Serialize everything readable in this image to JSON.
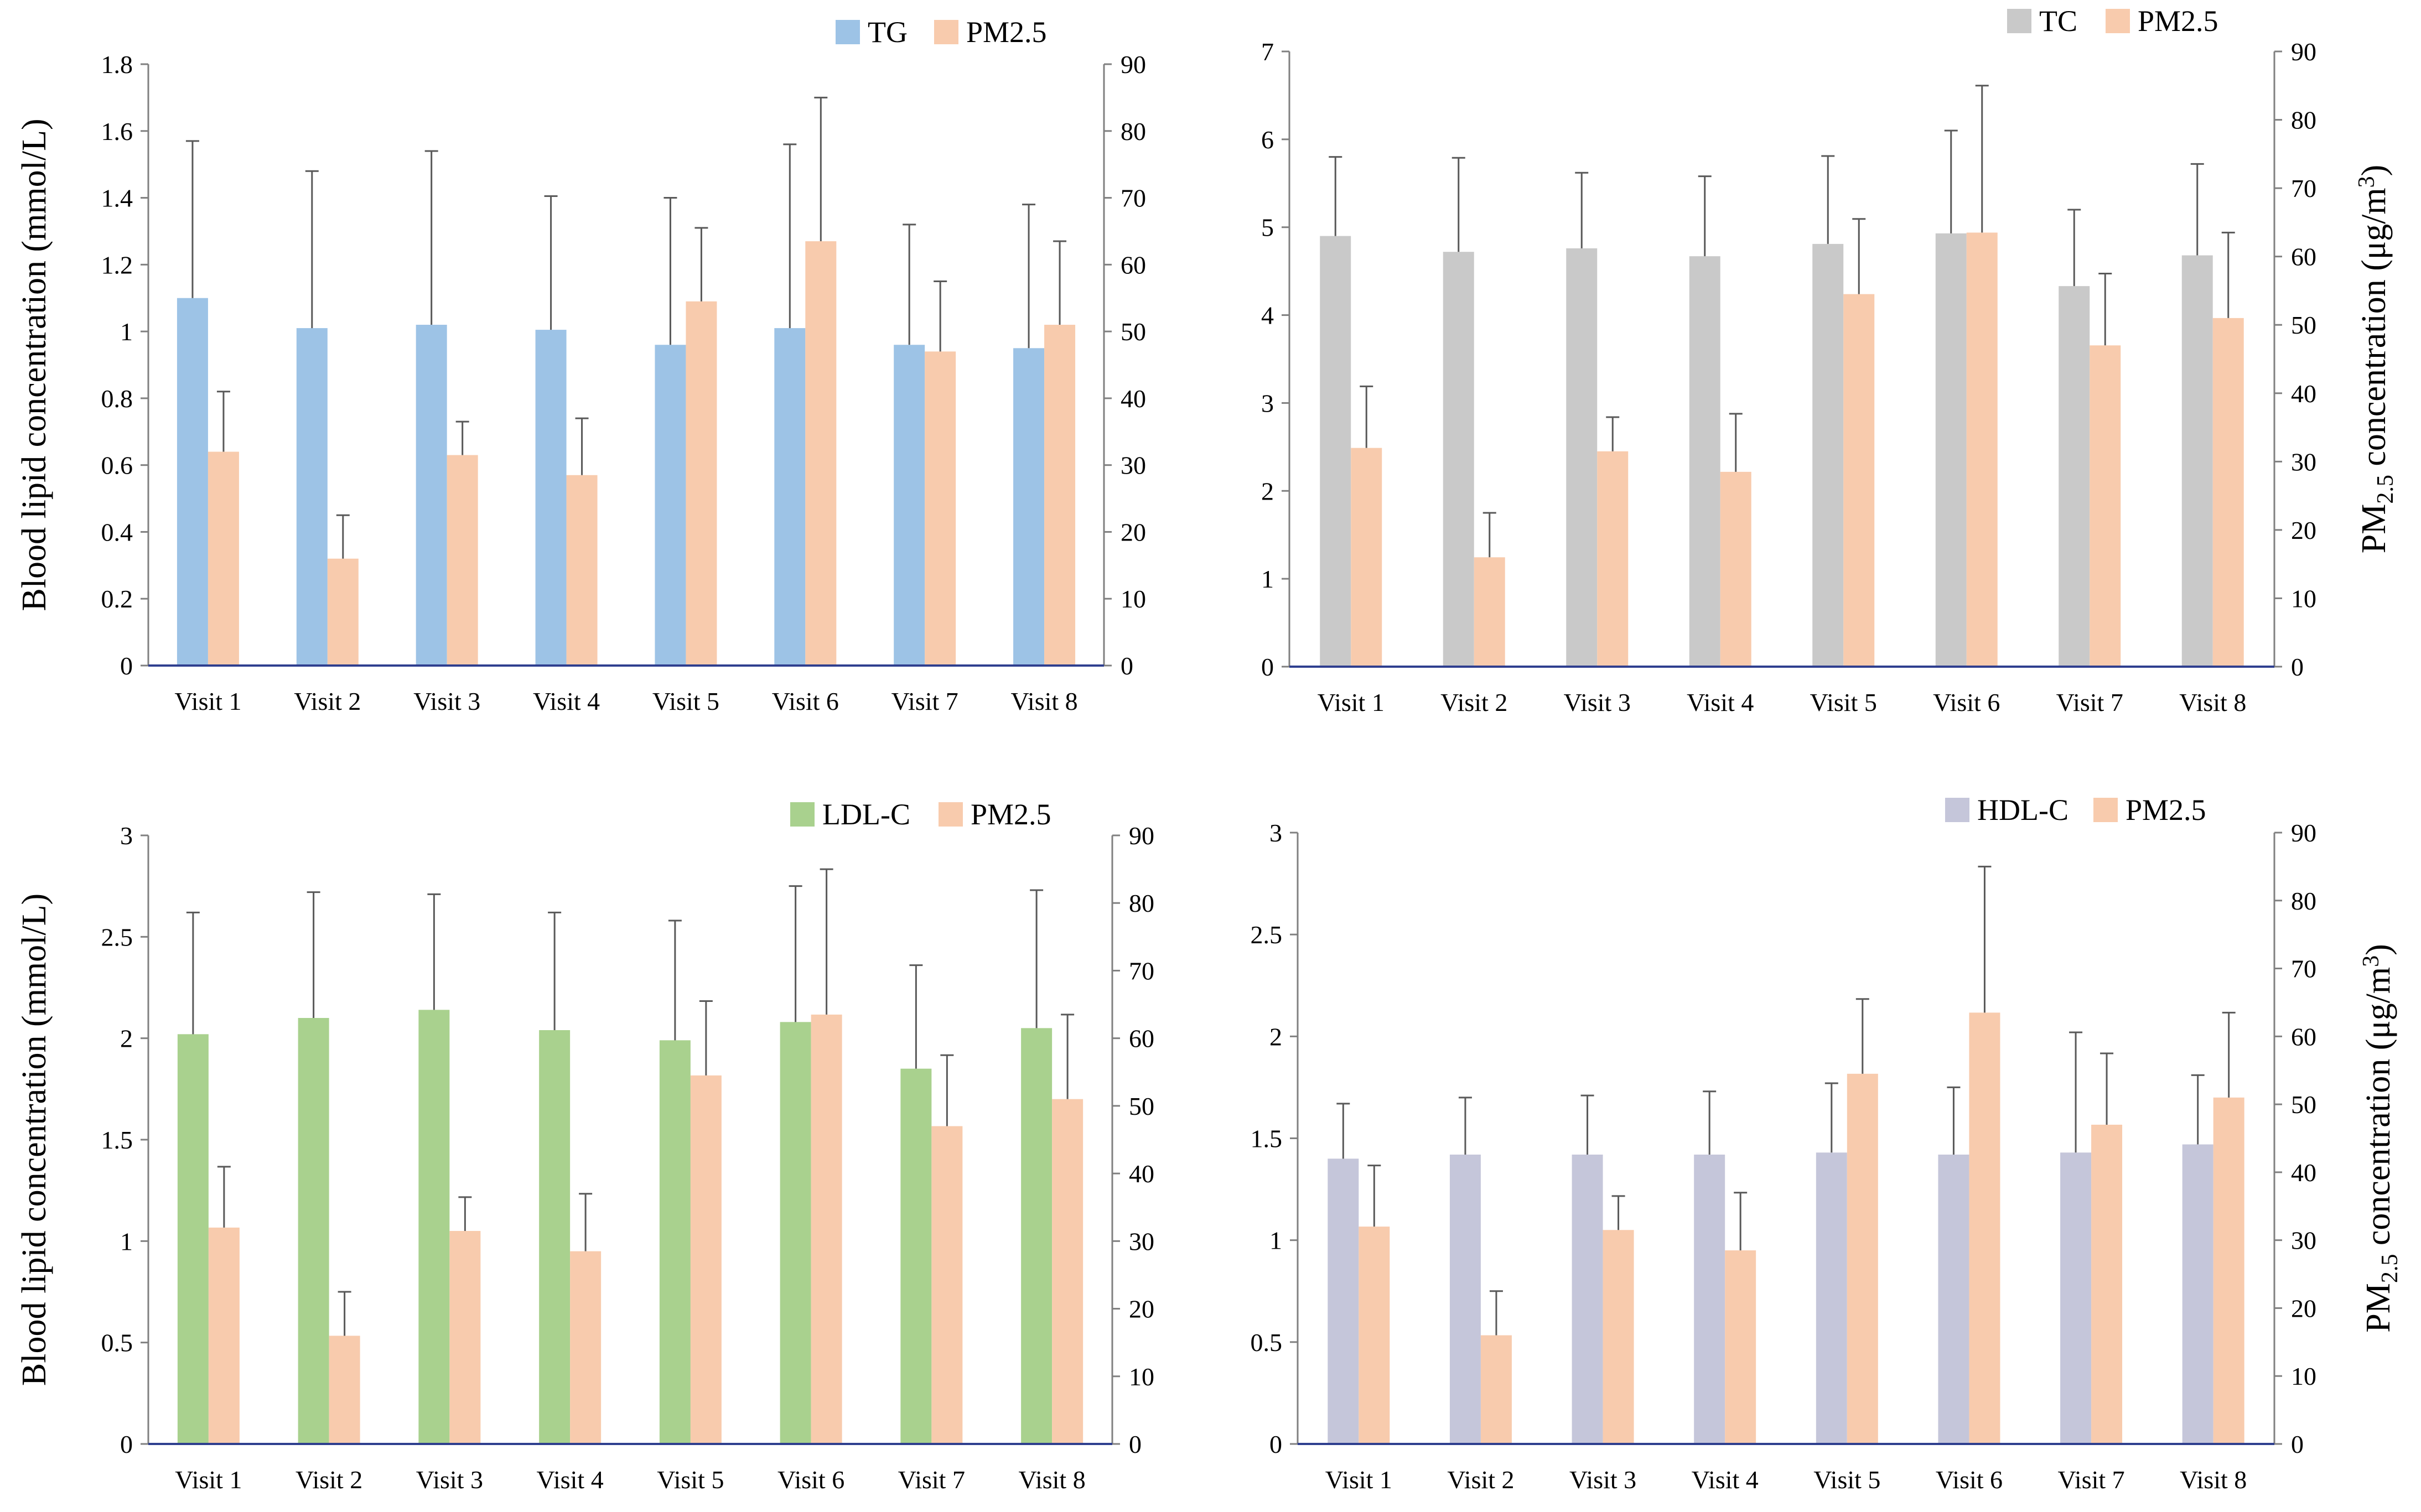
{
  "colors": {
    "TG": "#9dc3e6",
    "TC": "#c9c9c9",
    "LDL-C": "#a9d18e",
    "HDL-C": "#c5c6da",
    "PM2.5": "#f8cbad",
    "axis_primary": "#2f3f8f",
    "axis": "#808080",
    "error_bar": "#595959"
  },
  "chart_data": [
    {
      "type": "bar",
      "id": "tg",
      "categories": [
        "Visit 1",
        "Visit 2",
        "Visit 3",
        "Visit 4",
        "Visit 5",
        "Visit 6",
        "Visit 7",
        "Visit 8"
      ],
      "series": [
        {
          "name": "TG",
          "axis": "left",
          "values": [
            1.1,
            1.01,
            1.02,
            1.005,
            0.96,
            1.01,
            0.96,
            0.95
          ],
          "error": [
            0.47,
            0.47,
            0.52,
            0.4,
            0.44,
            0.55,
            0.36,
            0.43
          ]
        },
        {
          "name": "PM2.5",
          "axis": "right",
          "values": [
            32,
            16,
            31.5,
            28.5,
            54.5,
            63.5,
            47,
            51
          ],
          "error": [
            9,
            6.5,
            5,
            8.5,
            11,
            21.5,
            10.5,
            12.5
          ]
        }
      ],
      "ylabel": "Blood lipid concentration (mmol/L)",
      "ylabel_right": "",
      "ylim": [
        0,
        1.8
      ],
      "yticks": [
        0,
        0.2,
        0.4,
        0.6,
        0.8,
        1,
        1.2,
        1.4,
        1.6,
        1.8
      ],
      "ytick_labels": [
        "0",
        "0.2",
        "0.4",
        "0.6",
        "0.8",
        "1",
        "1.2",
        "1.4",
        "1.6",
        "1.8"
      ],
      "y2lim": [
        0,
        90
      ],
      "y2ticks": [
        0,
        10,
        20,
        30,
        40,
        50,
        60,
        70,
        80,
        90
      ],
      "y2tick_labels": [
        "0",
        "10",
        "20",
        "30",
        "40",
        "50",
        "60",
        "70",
        "80",
        "90"
      ],
      "legend": [
        "TG",
        "PM2.5"
      ],
      "legend_position": "top-right"
    },
    {
      "type": "bar",
      "id": "tc",
      "categories": [
        "Visit 1",
        "Visit 2",
        "Visit 3",
        "Visit 4",
        "Visit 5",
        "Visit 6",
        "Visit 7",
        "Visit 8"
      ],
      "series": [
        {
          "name": "TC",
          "axis": "left",
          "values": [
            4.9,
            4.72,
            4.76,
            4.67,
            4.81,
            4.93,
            4.33,
            4.68
          ],
          "error": [
            0.9,
            1.07,
            0.86,
            0.91,
            1.0,
            1.17,
            0.87,
            1.04
          ]
        },
        {
          "name": "PM2.5",
          "axis": "right",
          "values": [
            32,
            16,
            31.5,
            28.5,
            54.5,
            63.5,
            47,
            51
          ],
          "error": [
            9,
            6.5,
            5,
            8.5,
            11,
            21.5,
            10.5,
            12.5
          ]
        }
      ],
      "ylabel": "",
      "ylabel_right": "PM",
      "ylabel_right_sub": "2.5",
      "ylabel_right_rest": " concentration (μg/m",
      "ylabel_right_sup": "3",
      "ylabel_right_end": ")",
      "ylim": [
        0,
        7
      ],
      "yticks": [
        0,
        1,
        2,
        3,
        4,
        5,
        6,
        7
      ],
      "ytick_labels": [
        "0",
        "1",
        "2",
        "3",
        "4",
        "5",
        "6",
        "7"
      ],
      "y2lim": [
        0,
        90
      ],
      "y2ticks": [
        0,
        10,
        20,
        30,
        40,
        50,
        60,
        70,
        80,
        90
      ],
      "y2tick_labels": [
        "0",
        "10",
        "20",
        "30",
        "40",
        "50",
        "60",
        "70",
        "80",
        "90"
      ],
      "legend": [
        "TC",
        "PM2.5"
      ],
      "legend_position": "top-right"
    },
    {
      "type": "bar",
      "id": "ldl",
      "categories": [
        "Visit 1",
        "Visit 2",
        "Visit 3",
        "Visit 4",
        "Visit 5",
        "Visit 6",
        "Visit 7",
        "Visit 8"
      ],
      "series": [
        {
          "name": "LDL-C",
          "axis": "left",
          "values": [
            2.02,
            2.1,
            2.14,
            2.04,
            1.99,
            2.08,
            1.85,
            2.05
          ],
          "error": [
            0.6,
            0.62,
            0.57,
            0.58,
            0.59,
            0.67,
            0.51,
            0.68
          ]
        },
        {
          "name": "PM2.5",
          "axis": "right",
          "values": [
            32,
            16,
            31.5,
            28.5,
            54.5,
            63.5,
            47,
            51
          ],
          "error": [
            9,
            6.5,
            5,
            8.5,
            11,
            21.5,
            10.5,
            12.5
          ]
        }
      ],
      "ylabel": "Blood lipid concentration (mmol/L)",
      "ylabel_right": "",
      "ylim": [
        0,
        3
      ],
      "yticks": [
        0,
        0.5,
        1,
        1.5,
        2,
        2.5,
        3
      ],
      "ytick_labels": [
        "0",
        "0.5",
        "1",
        "1.5",
        "2",
        "2.5",
        "3"
      ],
      "y2lim": [
        0,
        90
      ],
      "y2ticks": [
        0,
        10,
        20,
        30,
        40,
        50,
        60,
        70,
        80,
        90
      ],
      "y2tick_labels": [
        "0",
        "10",
        "20",
        "30",
        "40",
        "50",
        "60",
        "70",
        "80",
        "90"
      ],
      "legend": [
        "LDL-C",
        "PM2.5"
      ],
      "legend_position": "top-right"
    },
    {
      "type": "bar",
      "id": "hdl",
      "categories": [
        "Visit 1",
        "Visit 2",
        "Visit 3",
        "Visit 4",
        "Visit 5",
        "Visit 6",
        "Visit 7",
        "Visit 8"
      ],
      "series": [
        {
          "name": "HDL-C",
          "axis": "left",
          "values": [
            1.4,
            1.42,
            1.42,
            1.42,
            1.43,
            1.42,
            1.43,
            1.47
          ],
          "error": [
            0.27,
            0.28,
            0.29,
            0.31,
            0.34,
            0.33,
            0.59,
            0.34
          ]
        },
        {
          "name": "PM2.5",
          "axis": "right",
          "values": [
            32,
            16,
            31.5,
            28.5,
            54.5,
            63.5,
            47,
            51
          ],
          "error": [
            9,
            6.5,
            5,
            8.5,
            11,
            21.5,
            10.5,
            12.5
          ]
        }
      ],
      "ylabel": "",
      "ylabel_right": "PM",
      "ylabel_right_sub": "2.5",
      "ylabel_right_rest": " concentration (μg/m",
      "ylabel_right_sup": "3",
      "ylabel_right_end": ")",
      "ylim": [
        0,
        3
      ],
      "yticks": [
        0,
        0.5,
        1,
        1.5,
        2,
        2.5,
        3
      ],
      "ytick_labels": [
        "0",
        "0.5",
        "1",
        "1.5",
        "2",
        "2.5",
        "3"
      ],
      "y2lim": [
        0,
        90
      ],
      "y2ticks": [
        0,
        10,
        20,
        30,
        40,
        50,
        60,
        70,
        80,
        90
      ],
      "y2tick_labels": [
        "0",
        "10",
        "20",
        "30",
        "40",
        "50",
        "60",
        "70",
        "80",
        "90"
      ],
      "legend": [
        "HDL-C",
        "PM2.5"
      ],
      "legend_position": "top-right"
    }
  ]
}
